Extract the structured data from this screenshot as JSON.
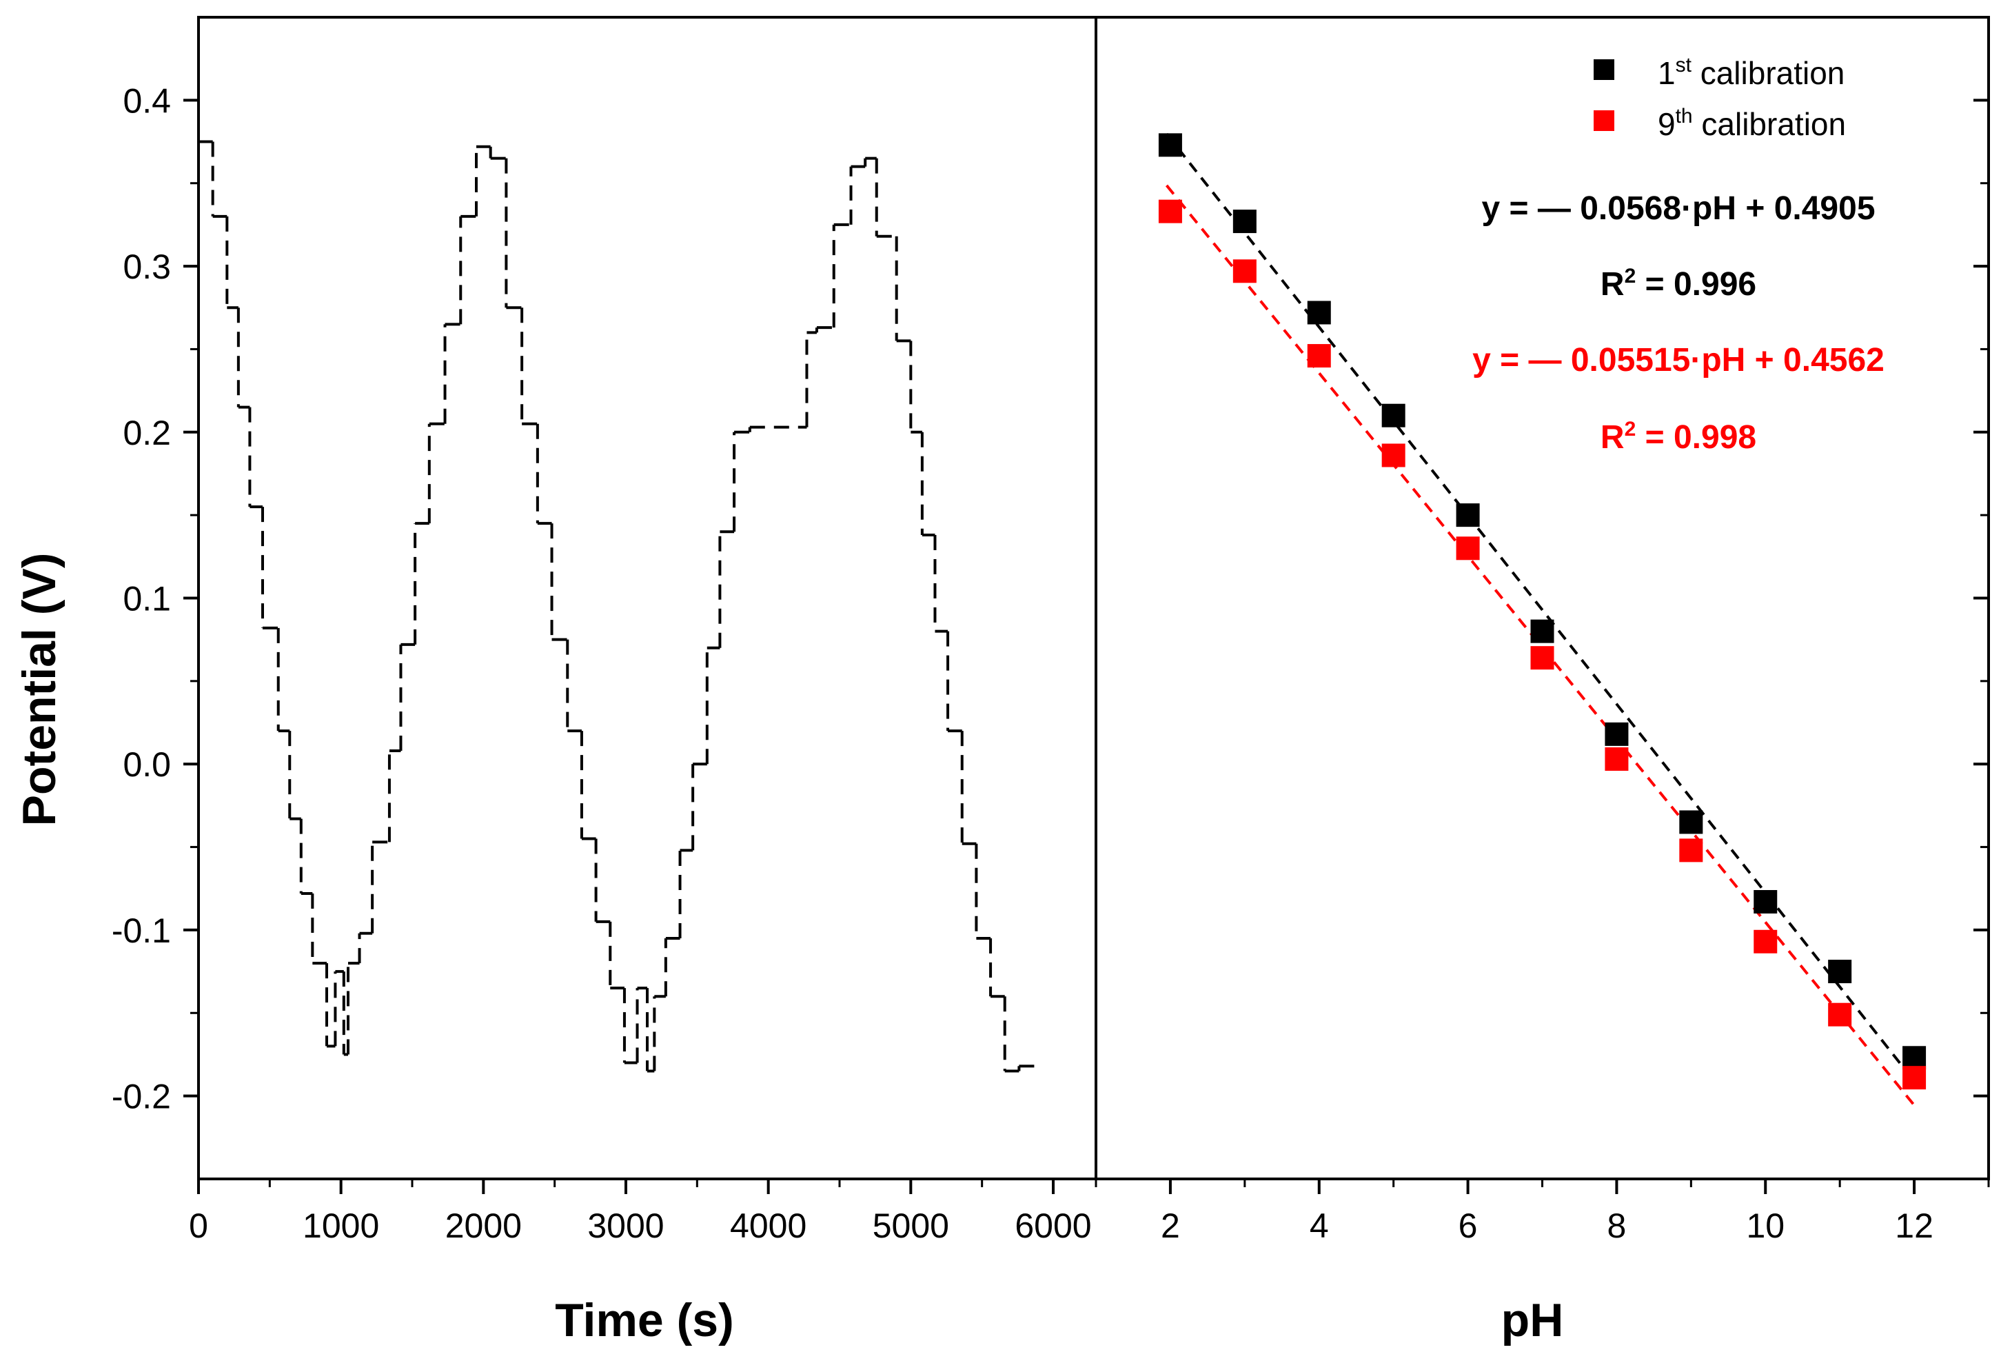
{
  "colors": {
    "series1": "#000000",
    "series2": "#ff0000",
    "background": "#ffffff"
  },
  "chart_data": [
    {
      "type": "line",
      "panel": "left",
      "title": "",
      "xlabel": "Time (s)",
      "ylabel": "Potential (V)",
      "xlim": [
        0,
        6300
      ],
      "ylim": [
        -0.25,
        0.45
      ],
      "xticks": [
        0,
        1000,
        2000,
        3000,
        4000,
        5000,
        6000
      ],
      "xtick_labels": [
        "0",
        "1000",
        "2000",
        "3000",
        "4000",
        "5000",
        "6000"
      ],
      "yticks": [
        -0.2,
        -0.1,
        0.0,
        0.1,
        0.2,
        0.3,
        0.4
      ],
      "ytick_labels": [
        "-0.2",
        "-0.1",
        "0.0",
        "0.1",
        "0.2",
        "0.3",
        "0.4"
      ],
      "line_style": "dashed",
      "series": [
        {
          "name": "potential",
          "color": "#000000",
          "steps": [
            [
              0,
              100,
              0.375
            ],
            [
              100,
              200,
              0.33
            ],
            [
              200,
              280,
              0.275
            ],
            [
              280,
              360,
              0.215
            ],
            [
              360,
              450,
              0.155
            ],
            [
              450,
              560,
              0.082
            ],
            [
              560,
              640,
              0.02
            ],
            [
              640,
              720,
              -0.033
            ],
            [
              720,
              800,
              -0.078
            ],
            [
              800,
              900,
              -0.12
            ],
            [
              900,
              960,
              -0.17
            ],
            [
              960,
              1020,
              -0.125
            ],
            [
              1020,
              1050,
              -0.175
            ],
            [
              1050,
              1130,
              -0.12
            ],
            [
              1130,
              1220,
              -0.102
            ],
            [
              1220,
              1340,
              -0.047
            ],
            [
              1340,
              1420,
              0.008
            ],
            [
              1420,
              1520,
              0.072
            ],
            [
              1520,
              1620,
              0.145
            ],
            [
              1620,
              1730,
              0.205
            ],
            [
              1730,
              1840,
              0.265
            ],
            [
              1840,
              1950,
              0.33
            ],
            [
              1950,
              2050,
              0.372
            ],
            [
              2050,
              2160,
              0.365
            ],
            [
              2160,
              2270,
              0.275
            ],
            [
              2270,
              2380,
              0.205
            ],
            [
              2380,
              2480,
              0.145
            ],
            [
              2480,
              2590,
              0.075
            ],
            [
              2590,
              2690,
              0.02
            ],
            [
              2690,
              2790,
              -0.045
            ],
            [
              2790,
              2890,
              -0.095
            ],
            [
              2890,
              2990,
              -0.135
            ],
            [
              2990,
              3080,
              -0.18
            ],
            [
              3080,
              3150,
              -0.135
            ],
            [
              3150,
              3200,
              -0.185
            ],
            [
              3200,
              3280,
              -0.14
            ],
            [
              3280,
              3380,
              -0.105
            ],
            [
              3380,
              3470,
              -0.052
            ],
            [
              3470,
              3570,
              0.0
            ],
            [
              3570,
              3660,
              0.07
            ],
            [
              3660,
              3760,
              0.14
            ],
            [
              3760,
              3870,
              0.2
            ],
            [
              3870,
              4270,
              0.203
            ],
            [
              4270,
              4340,
              0.26
            ],
            [
              4340,
              4460,
              0.263
            ],
            [
              4460,
              4580,
              0.325
            ],
            [
              4580,
              4680,
              0.36
            ],
            [
              4680,
              4760,
              0.365
            ],
            [
              4760,
              4900,
              0.318
            ],
            [
              4900,
              5000,
              0.255
            ],
            [
              5000,
              5080,
              0.2
            ],
            [
              5080,
              5170,
              0.138
            ],
            [
              5170,
              5260,
              0.08
            ],
            [
              5260,
              5360,
              0.02
            ],
            [
              5360,
              5460,
              -0.048
            ],
            [
              5460,
              5560,
              -0.105
            ],
            [
              5560,
              5660,
              -0.14
            ],
            [
              5660,
              5760,
              -0.185
            ],
            [
              5760,
              5900,
              -0.182
            ]
          ]
        }
      ]
    },
    {
      "type": "scatter",
      "panel": "right",
      "title": "",
      "xlabel": "pH",
      "ylabel": "",
      "xlim": [
        1,
        13
      ],
      "ylim": [
        -0.25,
        0.45
      ],
      "xticks": [
        2,
        4,
        6,
        8,
        10,
        12
      ],
      "xtick_labels": [
        "2",
        "4",
        "6",
        "8",
        "10",
        "12"
      ],
      "legend_position": "top-right",
      "series": [
        {
          "name": "1st calibration",
          "legend_base": "1",
          "legend_sup": "st",
          "legend_rest": " calibration",
          "color": "#000000",
          "x": [
            2,
            3,
            4,
            5,
            6,
            7,
            8,
            9,
            10,
            11,
            12
          ],
          "y": [
            0.373,
            0.327,
            0.272,
            0.21,
            0.15,
            0.08,
            0.018,
            -0.035,
            -0.083,
            -0.125,
            -0.177
          ],
          "fit": {
            "slope": -0.0568,
            "intercept": 0.4905,
            "x_range": [
              2,
              12
            ]
          }
        },
        {
          "name": "9th calibration",
          "legend_base": "9",
          "legend_sup": "th",
          "legend_rest": " calibration",
          "color": "#ff0000",
          "x": [
            2,
            3,
            4,
            5,
            6,
            7,
            8,
            9,
            10,
            11,
            12
          ],
          "y": [
            0.333,
            0.297,
            0.246,
            0.186,
            0.13,
            0.064,
            0.003,
            -0.052,
            -0.107,
            -0.151,
            -0.189
          ],
          "fit": {
            "slope": -0.05515,
            "intercept": 0.4562,
            "x_range": [
              2,
              12
            ]
          }
        }
      ],
      "annotations": {
        "eq1": "y = — 0.0568·pH + 0.4905",
        "r2_1_base": "R",
        "r2_1_sup": "2",
        "r2_1_rest": " = 0.996",
        "eq2": "y = — 0.05515·pH + 0.4562",
        "r2_2_base": "R",
        "r2_2_sup": "2",
        "r2_2_rest": " = 0.998"
      }
    }
  ]
}
